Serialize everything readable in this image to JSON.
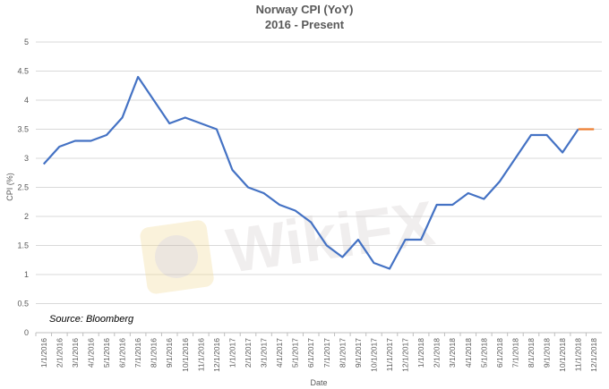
{
  "chart_data": {
    "type": "line",
    "title": "Norway CPI (YoY)",
    "subtitle": "2016 - Present",
    "xlabel": "Date",
    "ylabel": "CPI (%)",
    "ylim": [
      0,
      5
    ],
    "yticks": [
      "0",
      "0.5",
      "1",
      "1.5",
      "2",
      "2.5",
      "3",
      "3.5",
      "4",
      "4.5",
      "5"
    ],
    "grid": true,
    "annotation": "Source: Bloomberg",
    "x": [
      "1/1/2016",
      "2/1/2016",
      "3/1/2016",
      "4/1/2016",
      "5/1/2016",
      "6/1/2016",
      "7/1/2016",
      "8/1/2016",
      "9/1/2016",
      "10/1/2016",
      "11/1/2016",
      "12/1/2016",
      "1/1/2017",
      "2/1/2017",
      "3/1/2017",
      "4/1/2017",
      "5/1/2017",
      "6/1/2017",
      "7/1/2017",
      "8/1/2017",
      "9/1/2017",
      "10/1/2017",
      "11/1/2017",
      "12/1/2017",
      "1/1/2018",
      "2/1/2018",
      "3/1/2018",
      "4/1/2018",
      "5/1/2018",
      "6/1/2018",
      "7/1/2018",
      "8/1/2018",
      "9/1/2018",
      "10/1/2018",
      "11/1/2018",
      "12/1/2018"
    ],
    "series": [
      {
        "color": "#4472C4",
        "values": [
          2.9,
          3.2,
          3.3,
          3.3,
          3.4,
          3.7,
          4.4,
          4.0,
          3.6,
          3.7,
          3.6,
          3.5,
          2.8,
          2.5,
          2.4,
          2.2,
          2.1,
          1.9,
          1.5,
          1.3,
          1.6,
          1.2,
          1.1,
          1.6,
          1.6,
          2.2,
          2.2,
          2.4,
          2.3,
          2.6,
          3.0,
          3.4,
          3.4,
          3.1,
          3.5,
          null
        ]
      },
      {
        "color": "#ED7D31",
        "values": [
          null,
          null,
          null,
          null,
          null,
          null,
          null,
          null,
          null,
          null,
          null,
          null,
          null,
          null,
          null,
          null,
          null,
          null,
          null,
          null,
          null,
          null,
          null,
          null,
          null,
          null,
          null,
          null,
          null,
          null,
          null,
          null,
          null,
          null,
          3.5,
          3.5
        ]
      }
    ]
  },
  "watermark": "WikiFX"
}
